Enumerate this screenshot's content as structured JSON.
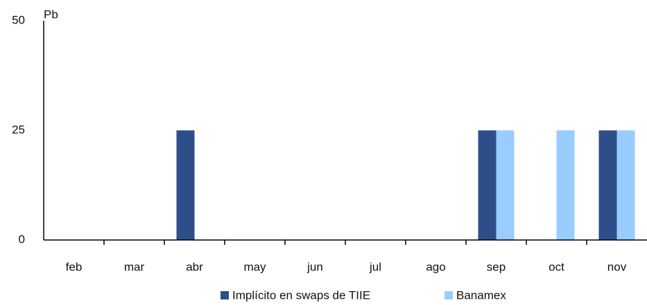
{
  "chart_data": {
    "type": "bar",
    "y_label": "Pb",
    "categories": [
      "feb",
      "mar",
      "abr",
      "may",
      "jun",
      "jul",
      "ago",
      "sep",
      "oct",
      "nov"
    ],
    "series": [
      {
        "name": "Implícito en swaps de TIIE",
        "color": "#2e4e8a",
        "values": [
          0,
          0,
          25,
          0,
          0,
          0,
          0,
          25,
          0,
          25
        ]
      },
      {
        "name": "Banamex",
        "color": "#99ccff",
        "values": [
          0,
          0,
          0,
          0,
          0,
          0,
          0,
          25,
          25,
          25
        ]
      }
    ],
    "ylim": [
      0,
      50
    ],
    "yticks": [
      0,
      25,
      50
    ],
    "grid": false,
    "legend": "bottom"
  }
}
